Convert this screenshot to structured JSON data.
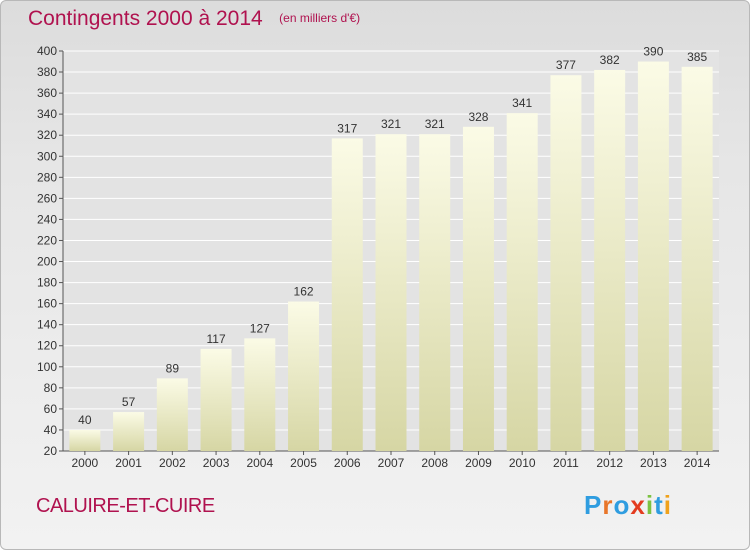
{
  "title": "Contingents 2000 à 2014",
  "subtitle": "(en milliers d'€)",
  "commune": "CALUIRE-ET-CUIRE",
  "logo": {
    "text": "Proxiti",
    "letters": [
      "P",
      "r",
      "o",
      "x",
      "i",
      "t",
      "i"
    ],
    "colors": [
      "#2f9de0",
      "#e8762a",
      "#2f9de0",
      "#e33b1f",
      "#7cc242",
      "#2f9de0",
      "#f0a21c"
    ]
  },
  "colors": {
    "accent": "#b0124f",
    "bar_light": "#fbfbe6",
    "bar_dark": "#d6d6a4"
  },
  "chart_data": {
    "type": "bar",
    "categories": [
      "2000",
      "2001",
      "2002",
      "2003",
      "2004",
      "2005",
      "2006",
      "2007",
      "2008",
      "2009",
      "2010",
      "2011",
      "2012",
      "2013",
      "2014"
    ],
    "values": [
      40,
      57,
      89,
      117,
      127,
      162,
      317,
      321,
      321,
      328,
      341,
      377,
      382,
      390,
      385
    ],
    "title": "Contingents 2000 à 2014",
    "ylim": [
      20,
      400
    ],
    "yticks": [
      20,
      40,
      60,
      80,
      100,
      120,
      140,
      160,
      180,
      200,
      220,
      240,
      260,
      280,
      300,
      320,
      340,
      360,
      380,
      400
    ],
    "grid": true
  }
}
